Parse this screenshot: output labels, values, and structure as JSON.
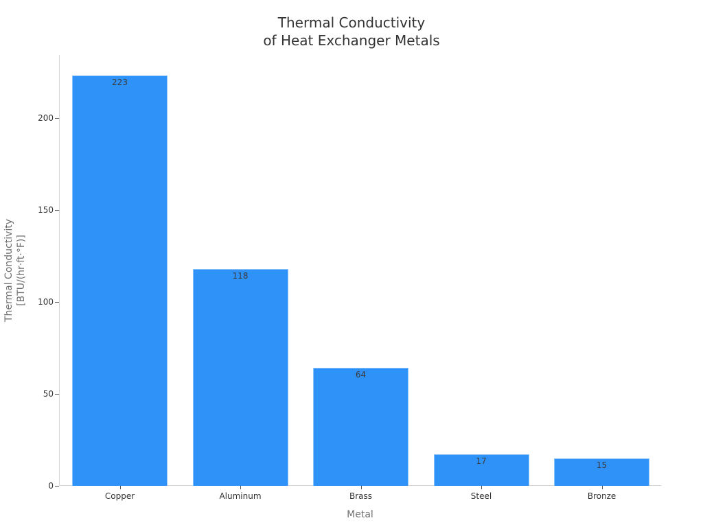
{
  "chart_data": {
    "type": "bar",
    "title": "Thermal Conductivity\nof Heat Exchanger Metals",
    "title_lines": [
      "Thermal Conductivity",
      "of Heat Exchanger Metals"
    ],
    "categories": [
      "Copper",
      "Aluminum",
      "Brass",
      "Steel",
      "Bronze"
    ],
    "values": [
      223,
      118,
      64,
      17,
      15
    ],
    "data_labels": [
      "223",
      "118",
      "64",
      "17",
      "15"
    ],
    "xlabel": "Metal",
    "ylabel": "Thermal Conductivity\n[BTU/(hr·ft·°F)]",
    "ylabel_lines": [
      "Thermal Conductivity",
      "[BTU/(hr·ft·°F)]"
    ],
    "yticks": [
      0,
      50,
      100,
      150,
      200
    ],
    "ylim": [
      0,
      234
    ],
    "grid": false,
    "legend": null,
    "bar_color": "#2f92f8"
  }
}
